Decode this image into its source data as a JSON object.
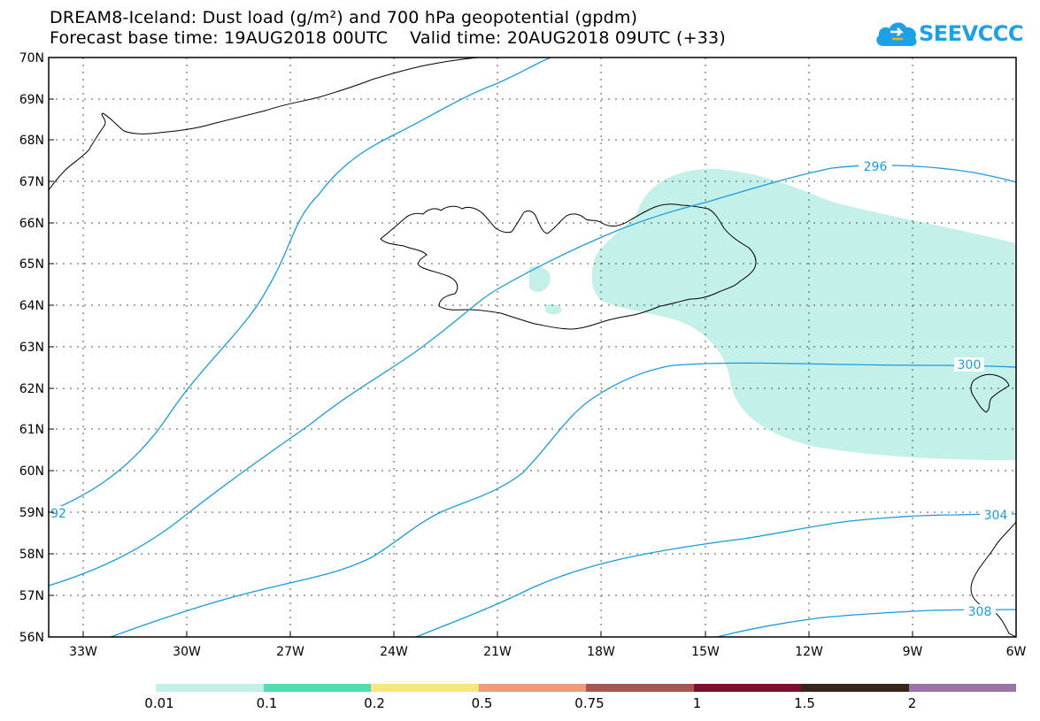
{
  "title_line1": "DREAM8-Iceland: Dust load (g/m²) and 700 hPa geopotential (gpdm)",
  "title_line2": "Forecast base time: 19AUG2018 00UTC    Valid time: 20AUG2018 09UTC (+33)",
  "logo": {
    "text": "SEEVCCC",
    "icon": "cloud-icon",
    "color": "#1da1e6"
  },
  "map": {
    "lat_labels": [
      "70N",
      "69N",
      "68N",
      "67N",
      "66N",
      "65N",
      "64N",
      "63N",
      "62N",
      "61N",
      "60N",
      "59N",
      "58N",
      "57N",
      "56N"
    ],
    "lon_labels": [
      "33W",
      "30W",
      "27W",
      "24W",
      "21W",
      "18W",
      "15W",
      "12W",
      "9W",
      "6W"
    ],
    "contour_labels": [
      "296",
      "300",
      "304",
      "308",
      "92"
    ],
    "contour_color": "#1a9be0",
    "dust_color": "#c4f0ea"
  },
  "legend": {
    "colors": [
      "#c4f0ea",
      "#5ad9b0",
      "#f5e680",
      "#ef9a78",
      "#a75550",
      "#7c0e2e",
      "#3a2618",
      "#9a74a8"
    ],
    "labels": [
      "0.01",
      "0.1",
      "0.2",
      "0.5",
      "0.75",
      "1",
      "1.5",
      "2"
    ]
  }
}
